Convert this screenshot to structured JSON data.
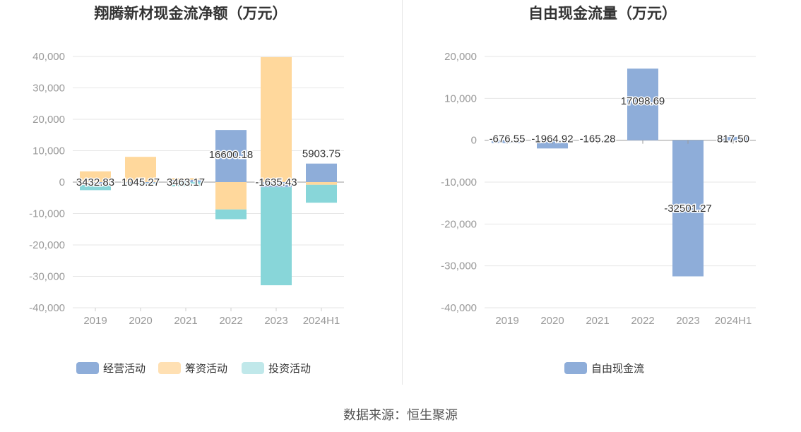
{
  "source_text": "数据来源：恒生聚源",
  "chart_data": [
    {
      "type": "bar",
      "stacked": true,
      "title": "翔腾新材现金流净额（万元）",
      "categories": [
        "2019",
        "2020",
        "2021",
        "2022",
        "2023",
        "2024H1"
      ],
      "ylim": [
        -40000,
        40000
      ],
      "yticks": [
        "40,000",
        "30,000",
        "20,000",
        "10,000",
        "0",
        "-10,000",
        "-20,000",
        "-30,000",
        "-40,000"
      ],
      "grid": true,
      "legend_position": "bottom",
      "series": [
        {
          "name": "经营活动",
          "color": "#8eadd9",
          "values": [
            -760,
            -310,
            740,
            16600.18,
            -1635.43,
            5903.75
          ]
        },
        {
          "name": "筹资活动",
          "color": "#ffe0b3",
          "values": [
            3432.83,
            8050,
            540,
            -8700,
            39800,
            -850
          ]
        },
        {
          "name": "投资活动",
          "color": "#c0e8ea",
          "values": [
            -1800,
            -140,
            -1350,
            -3100,
            -31200,
            -5700
          ]
        }
      ],
      "data_labels": [
        {
          "category": "2019",
          "text": "3432.83"
        },
        {
          "category": "2020",
          "text": "1045.27"
        },
        {
          "category": "2021",
          "text": "3463.17"
        },
        {
          "category": "2022",
          "text": "16600.18"
        },
        {
          "category": "2023",
          "text": "-1635.43"
        },
        {
          "category": "2024H1",
          "text": "5903.75"
        }
      ],
      "investing_color_saturated": "#88d6d9",
      "financing_color_saturated": "#ffd89c"
    },
    {
      "type": "bar",
      "title": "自由现金流量（万元）",
      "categories": [
        "2019",
        "2020",
        "2021",
        "2022",
        "2023",
        "2024H1"
      ],
      "ylim": [
        -40000,
        20000
      ],
      "yticks": [
        "20,000",
        "10,000",
        "0",
        "-10,000",
        "-20,000",
        "-30,000",
        "-40,000"
      ],
      "grid": true,
      "legend_position": "bottom",
      "series": [
        {
          "name": "自由现金流",
          "color": "#8eadd9",
          "values": [
            -676.55,
            -1964.92,
            -165.28,
            17098.69,
            -32501.27,
            817.5
          ]
        }
      ],
      "data_labels": [
        "-676.55",
        "-1964.92",
        "-165.28",
        "17098.69",
        "-32501.27",
        "817.50"
      ]
    }
  ]
}
